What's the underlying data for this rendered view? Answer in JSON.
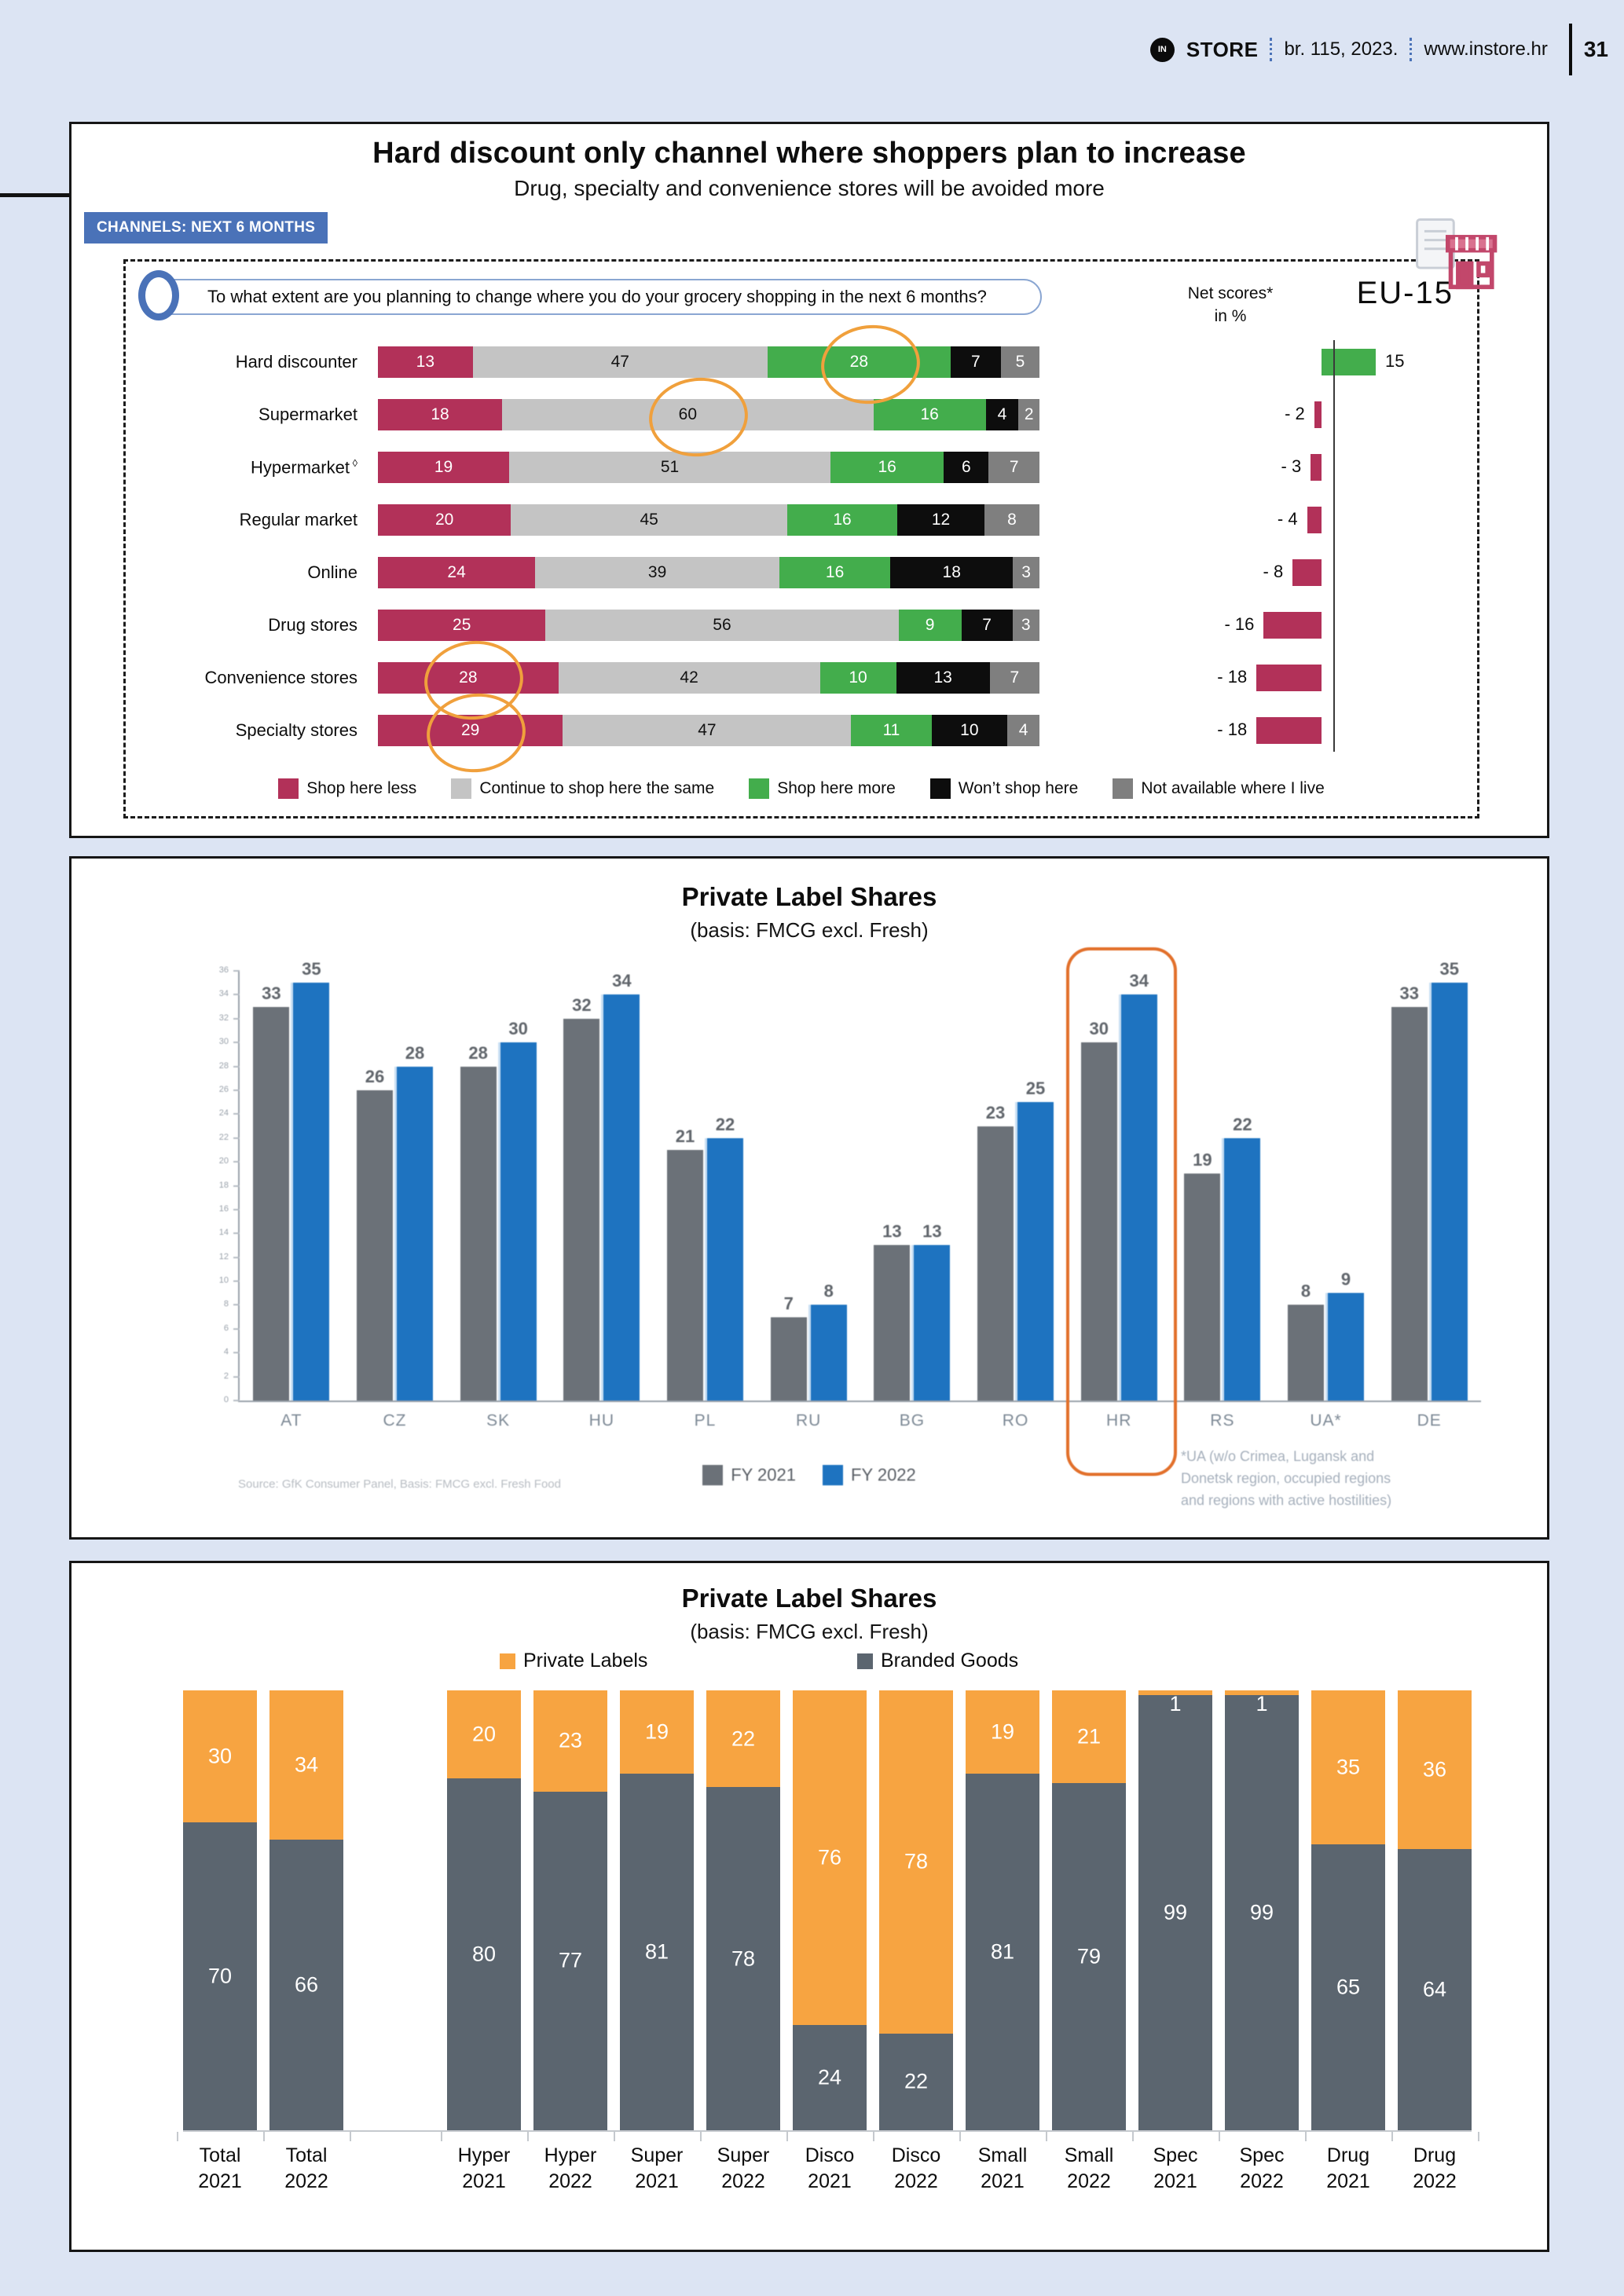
{
  "header": {
    "logo": "IN",
    "brand": "STORE",
    "issue": "br. 115, 2023.",
    "site": "www.instore.hr",
    "page_number": "31"
  },
  "chart1": {
    "title": "Hard discount only channel where shoppers plan to increase",
    "subtitle": "Drug, specialty and convenience stores will be avoided more",
    "badge": "CHANNELS: NEXT 6 MONTHS",
    "question": "To what extent are you planning to change where you do your grocery shopping in the next 6 months?",
    "region": "EU-15",
    "net_label1": "Net scores*",
    "net_label2": "in %",
    "legend": [
      {
        "label": "Shop here less",
        "color": "#b23159"
      },
      {
        "label": "Continue to shop here the same",
        "color": "#c4c4c4"
      },
      {
        "label": "Shop here more",
        "color": "#43ad4c"
      },
      {
        "label": "Won’t shop here",
        "color": "#0d0d0d"
      },
      {
        "label": "Not available where I live",
        "color": "#7f7f7f"
      }
    ],
    "rows": [
      {
        "label": "Hard discounter",
        "sup": "",
        "values": [
          13,
          47,
          28,
          7,
          5
        ],
        "net": 15,
        "net_display": "15",
        "circled": 2
      },
      {
        "label": "Supermarket",
        "sup": "",
        "values": [
          18,
          60,
          16,
          4,
          2
        ],
        "net": -2,
        "net_display": "- 2",
        "circled": 1
      },
      {
        "label": "Hypermarket",
        "sup": "◊",
        "values": [
          19,
          51,
          16,
          6,
          7
        ],
        "net": -3,
        "net_display": "- 3",
        "circled": null
      },
      {
        "label": "Regular market",
        "sup": "",
        "values": [
          20,
          45,
          16,
          12,
          8
        ],
        "net": -4,
        "net_display": "- 4",
        "circled": null
      },
      {
        "label": "Online",
        "sup": "",
        "values": [
          24,
          39,
          16,
          18,
          3
        ],
        "net": -8,
        "net_display": "- 8",
        "circled": null
      },
      {
        "label": "Drug stores",
        "sup": "",
        "values": [
          25,
          56,
          9,
          7,
          3
        ],
        "net": -16,
        "net_display": "- 16",
        "circled": null
      },
      {
        "label": "Convenience stores",
        "sup": "",
        "values": [
          28,
          42,
          10,
          13,
          7
        ],
        "net": -18,
        "net_display": "- 18",
        "circled": 0
      },
      {
        "label": "Specialty stores",
        "sup": "",
        "values": [
          29,
          47,
          11,
          10,
          4
        ],
        "net": -18,
        "net_display": "- 18",
        "circled": 0
      }
    ]
  },
  "chart2": {
    "title": "Private Label Shares",
    "subtitle": "(basis: FMCG excl. Fresh)",
    "categories": [
      "AT",
      "CZ",
      "SK",
      "HU",
      "PL",
      "RU",
      "BG",
      "RO",
      "HR",
      "RS",
      "UA*",
      "DE"
    ],
    "fy2021": [
      33,
      26,
      28,
      32,
      21,
      7,
      13,
      23,
      30,
      19,
      8,
      33
    ],
    "fy2022": [
      35,
      28,
      30,
      34,
      22,
      8,
      13,
      25,
      34,
      22,
      9,
      35
    ],
    "legend": [
      {
        "label": "FY  2021",
        "color": "#6b7178"
      },
      {
        "label": "FY  2022",
        "color": "#1e73c0"
      }
    ],
    "highlight_category": "HR",
    "source": "Source: GfK Consumer Panel, Basis: FMCG excl. Fresh Food",
    "footnote": [
      "*UA (w/o Crimea, Lugansk and",
      "Donetsk region, occupied regions",
      "and regions with active hostilities)"
    ],
    "ylim": [
      0,
      36
    ],
    "yticks": [
      0,
      2,
      4,
      6,
      8,
      10,
      12,
      14,
      16,
      18,
      20,
      22,
      24,
      26,
      28,
      30,
      32,
      34,
      36
    ]
  },
  "chart3": {
    "title": "Private Label Shares",
    "subtitle": "(basis: FMCG excl. Fresh)",
    "legend": [
      {
        "label": "Private Labels",
        "color": "#f7a441"
      },
      {
        "label": "Branded Goods",
        "color": "#5b656f"
      }
    ],
    "categories": [
      [
        "Total",
        "2021"
      ],
      [
        "Total",
        "2022"
      ],
      [
        "Hyper",
        "2021"
      ],
      [
        "Hyper",
        "2022"
      ],
      [
        "Super",
        "2021"
      ],
      [
        "Super",
        "2022"
      ],
      [
        "Disco",
        "2021"
      ],
      [
        "Disco",
        "2022"
      ],
      [
        "Small",
        "2021"
      ],
      [
        "Small",
        "2022"
      ],
      [
        "Spec",
        "2021"
      ],
      [
        "Spec",
        "2022"
      ],
      [
        "Drug",
        "2021"
      ],
      [
        "Drug",
        "2022"
      ]
    ],
    "private_labels": [
      30,
      34,
      20,
      23,
      19,
      22,
      76,
      78,
      19,
      21,
      1,
      1,
      35,
      36
    ],
    "branded_goods": [
      70,
      66,
      80,
      77,
      81,
      78,
      24,
      22,
      81,
      79,
      99,
      99,
      65,
      64
    ],
    "group_break_after_index": 1
  },
  "chart_data": [
    {
      "type": "bar",
      "orientation": "horizontal-stacked",
      "title": "Hard discount only channel where shoppers plan to increase",
      "subtitle": "Drug, specialty and convenience stores will be avoided more",
      "question": "To what extent are you planning to change where you do your grocery shopping in the next 6 months?",
      "region": "EU-15",
      "categories": [
        "Hard discounter",
        "Supermarket",
        "Hypermarket",
        "Regular market",
        "Online",
        "Drug stores",
        "Convenience stores",
        "Specialty stores"
      ],
      "series": [
        {
          "name": "Shop here less",
          "values": [
            13,
            18,
            19,
            20,
            24,
            25,
            28,
            29
          ]
        },
        {
          "name": "Continue to shop here the same",
          "values": [
            47,
            60,
            51,
            45,
            39,
            56,
            42,
            47
          ]
        },
        {
          "name": "Shop here more",
          "values": [
            28,
            16,
            16,
            16,
            16,
            9,
            10,
            11
          ]
        },
        {
          "name": "Won’t shop here",
          "values": [
            7,
            4,
            6,
            12,
            18,
            7,
            13,
            10
          ]
        },
        {
          "name": "Not available where I live",
          "values": [
            5,
            2,
            7,
            8,
            3,
            3,
            7,
            4
          ]
        }
      ],
      "net_scores_in_pct": [
        15,
        -2,
        -3,
        -4,
        -8,
        -16,
        -18,
        -18
      ],
      "legend_position": "bottom"
    },
    {
      "type": "bar",
      "orientation": "vertical-grouped",
      "title": "Private Label Shares",
      "subtitle": "(basis: FMCG excl. Fresh)",
      "categories": [
        "AT",
        "CZ",
        "SK",
        "HU",
        "PL",
        "RU",
        "BG",
        "RO",
        "HR",
        "RS",
        "UA*",
        "DE"
      ],
      "series": [
        {
          "name": "FY 2021",
          "values": [
            33,
            26,
            28,
            32,
            21,
            7,
            13,
            23,
            30,
            19,
            8,
            33
          ]
        },
        {
          "name": "FY 2022",
          "values": [
            35,
            28,
            30,
            34,
            22,
            8,
            13,
            25,
            34,
            22,
            9,
            35
          ]
        }
      ],
      "ylim": [
        0,
        36
      ],
      "grid": false,
      "legend_position": "bottom",
      "highlighted_category": "HR",
      "source": "Source: GfK Consumer Panel, Basis: FMCG excl. Fresh Food",
      "footnote": "*UA (w/o Crimea, Lugansk and Donetsk region, occupied regions and regions with active hostilities)"
    },
    {
      "type": "bar",
      "orientation": "vertical-stacked",
      "title": "Private Label Shares",
      "subtitle": "(basis: FMCG excl. Fresh)",
      "categories": [
        "Total 2021",
        "Total 2022",
        "Hyper 2021",
        "Hyper 2022",
        "Super 2021",
        "Super 2022",
        "Disco 2021",
        "Disco 2022",
        "Small 2021",
        "Small 2022",
        "Spec 2021",
        "Spec 2022",
        "Drug 2021",
        "Drug 2022"
      ],
      "series": [
        {
          "name": "Private Labels",
          "values": [
            30,
            34,
            20,
            23,
            19,
            22,
            76,
            78,
            19,
            21,
            1,
            1,
            35,
            36
          ]
        },
        {
          "name": "Branded Goods",
          "values": [
            70,
            66,
            80,
            77,
            81,
            78,
            24,
            22,
            81,
            79,
            99,
            99,
            65,
            64
          ]
        }
      ],
      "ylim": [
        0,
        100
      ],
      "legend_position": "top"
    }
  ]
}
